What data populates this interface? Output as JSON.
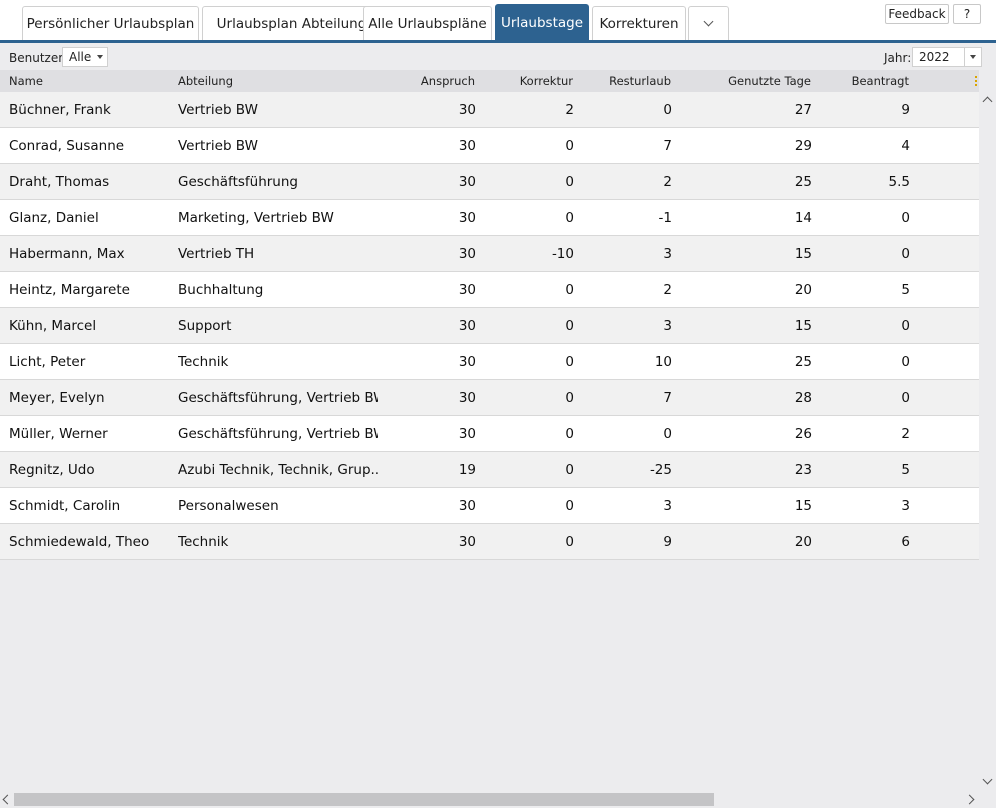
{
  "tabs": [
    {
      "label": "Persönlicher Urlaubsplan"
    },
    {
      "label": "Urlaubsplan Abteilung"
    },
    {
      "label": "Alle Urlaubspläne"
    },
    {
      "label": "Urlaubstage",
      "active": true
    },
    {
      "label": "Korrekturen"
    }
  ],
  "top_buttons": {
    "feedback": "Feedback",
    "help": "?"
  },
  "filters": {
    "user_label": "Benutzer",
    "user_value": "Alle",
    "year_label": "Jahr:",
    "year_value": "2022"
  },
  "table": {
    "columns": [
      "Name",
      "Abteilung",
      "Anspruch",
      "Korrektur",
      "Resturlaub",
      "Genutzte Tage",
      "Beantragt"
    ],
    "rows": [
      [
        "Büchner, Frank",
        "Vertrieb BW",
        "30",
        "2",
        "0",
        "27",
        "9"
      ],
      [
        "Conrad, Susanne",
        "Vertrieb BW",
        "30",
        "0",
        "7",
        "29",
        "4"
      ],
      [
        "Draht, Thomas",
        "Geschäftsführung",
        "30",
        "0",
        "2",
        "25",
        "5.5"
      ],
      [
        "Glanz, Daniel",
        "Marketing, Vertrieb BW",
        "30",
        "0",
        "-1",
        "14",
        "0"
      ],
      [
        "Habermann, Max",
        "Vertrieb TH",
        "30",
        "-10",
        "3",
        "15",
        "0"
      ],
      [
        "Heintz, Margarete",
        "Buchhaltung",
        "30",
        "0",
        "2",
        "20",
        "5"
      ],
      [
        "Kühn, Marcel",
        "Support",
        "30",
        "0",
        "3",
        "15",
        "0"
      ],
      [
        "Licht, Peter",
        "Technik",
        "30",
        "0",
        "10",
        "25",
        "0"
      ],
      [
        "Meyer, Evelyn",
        "Geschäftsführung, Vertrieb BW",
        "30",
        "0",
        "7",
        "28",
        "0"
      ],
      [
        "Müller, Werner",
        "Geschäftsführung, Vertrieb BW",
        "30",
        "0",
        "0",
        "26",
        "2"
      ],
      [
        "Regnitz, Udo",
        "Azubi Technik, Technik, Grup...",
        "19",
        "0",
        "-25",
        "23",
        "5"
      ],
      [
        "Schmidt, Carolin",
        "Personalwesen",
        "30",
        "0",
        "3",
        "15",
        "3"
      ],
      [
        "Schmiedewald, Theo",
        "Technik",
        "30",
        "0",
        "9",
        "20",
        "6"
      ]
    ]
  },
  "colors": {
    "accent": "#2d6290",
    "row_alt": "#f1f1f1",
    "header_bg": "#dfdfe2"
  },
  "icons": {
    "more_tabs": "chevron-down-icon",
    "scroll_up": "chevron-up-icon",
    "scroll_down": "chevron-down-icon"
  }
}
